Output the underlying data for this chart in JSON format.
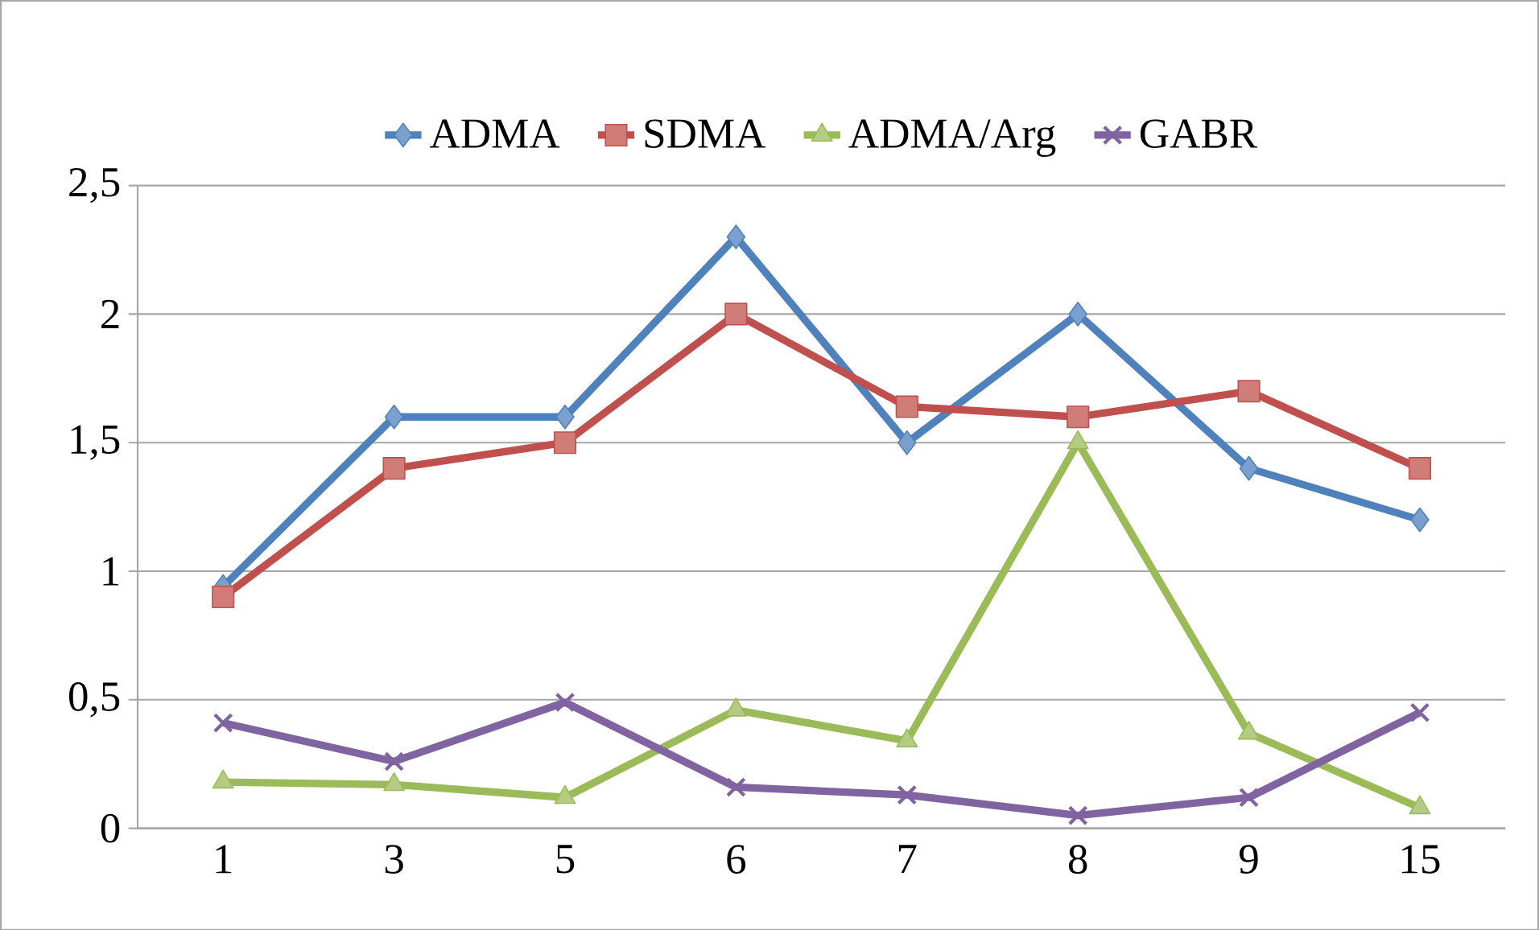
{
  "chart_data": {
    "type": "line",
    "categories": [
      "1",
      "3",
      "5",
      "6",
      "7",
      "8",
      "9",
      "15"
    ],
    "series": [
      {
        "name": "ADMA",
        "color": "#4f81bd",
        "marker": "diamond",
        "values": [
          0.94,
          1.6,
          1.6,
          2.3,
          1.5,
          2.0,
          1.4,
          1.2
        ]
      },
      {
        "name": "SDMA",
        "color": "#c0504d",
        "marker": "square",
        "values": [
          0.9,
          1.4,
          1.5,
          2.0,
          1.64,
          1.6,
          1.7,
          1.4
        ]
      },
      {
        "name": "ADMA/Arg",
        "color": "#9bbb59",
        "marker": "triangle",
        "values": [
          0.18,
          0.17,
          0.12,
          0.46,
          0.34,
          1.5,
          0.37,
          0.08
        ]
      },
      {
        "name": "GABR",
        "color": "#8064a2",
        "marker": "cross",
        "values": [
          0.41,
          0.26,
          0.49,
          0.16,
          0.13,
          0.05,
          0.12,
          0.45
        ]
      }
    ],
    "ylim": [
      0,
      2.5
    ],
    "yticks": [
      0,
      {
        "value": 0.5,
        "label": "0,5"
      },
      1,
      {
        "value": 1.5,
        "label": "1,5"
      },
      2,
      {
        "value": 2.5,
        "label": "2,5"
      }
    ],
    "grid": "y",
    "legend": "top",
    "line_style": "solid"
  }
}
